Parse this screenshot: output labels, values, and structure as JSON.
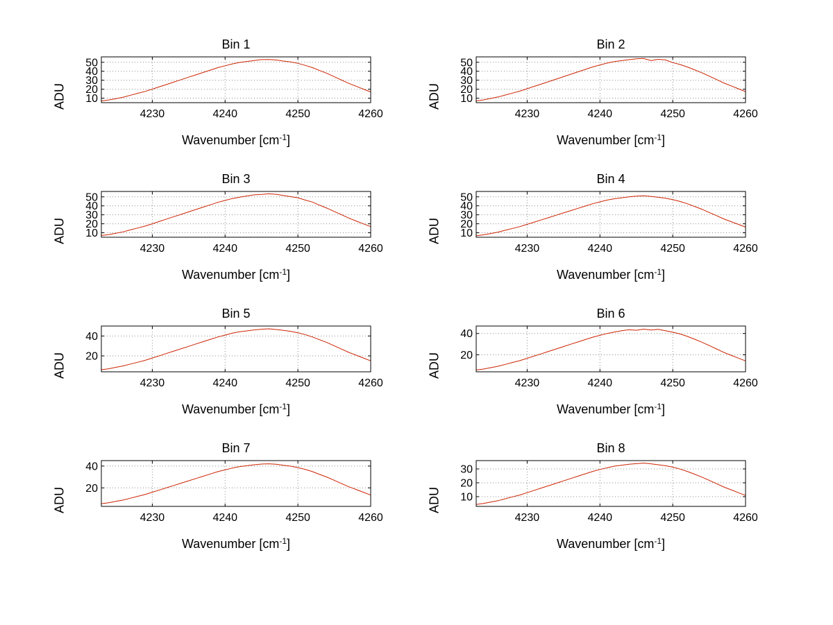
{
  "page": {
    "background": "#ffffff"
  },
  "style": {
    "line_color": "#cc2200",
    "grid_color": "#8a8a8a",
    "axis_color": "#000000",
    "tick_label_size": 16
  },
  "labels": {
    "ylabel": "ADU",
    "xlabel_prefix": "Wavenumber [cm",
    "xlabel_sup": "-1",
    "xlabel_suffix": "]"
  },
  "chart_data": {
    "type": "line",
    "title": "",
    "xlabel": "Wavenumber [cm^-1]",
    "ylabel": "ADU",
    "grid": true,
    "legend": false,
    "xlim": [
      4223,
      4260
    ],
    "xticks": [
      4230,
      4240,
      4250,
      4260
    ],
    "x": [
      4223,
      4224,
      4225,
      4226,
      4227,
      4228,
      4229,
      4230,
      4231,
      4232,
      4233,
      4234,
      4235,
      4236,
      4237,
      4238,
      4239,
      4240,
      4241,
      4242,
      4243,
      4244,
      4245,
      4246,
      4247,
      4248,
      4249,
      4250,
      4251,
      4252,
      4253,
      4254,
      4255,
      4256,
      4257,
      4258,
      4259,
      4260
    ],
    "panels": [
      {
        "title": "Bin 1",
        "yticks": [
          10,
          20,
          30,
          40,
          50
        ],
        "ylim": [
          5,
          56
        ],
        "values": [
          6.9,
          8.0,
          9.5,
          11.1,
          13.3,
          15.4,
          17.5,
          20.1,
          22.8,
          25.4,
          28.1,
          30.7,
          33.4,
          36.0,
          38.7,
          41.3,
          44.0,
          46.1,
          48.2,
          49.8,
          50.9,
          51.9,
          53.0,
          53.1,
          52.5,
          51.4,
          50.4,
          48.8,
          46.6,
          44.0,
          40.8,
          37.6,
          33.9,
          30.2,
          26.5,
          23.3,
          20.1,
          17.0
        ]
      },
      {
        "title": "Bin 2",
        "yticks": [
          10,
          20,
          30,
          40,
          50
        ],
        "ylim": [
          5,
          56
        ],
        "values": [
          7.0,
          8.1,
          9.7,
          11.3,
          13.5,
          15.7,
          17.8,
          20.5,
          23.2,
          25.9,
          28.6,
          31.3,
          34.0,
          36.7,
          39.4,
          42.1,
          44.8,
          47.0,
          49.1,
          50.8,
          51.8,
          52.9,
          53.8,
          54.2,
          51.8,
          53.3,
          52.6,
          49.7,
          47.5,
          44.8,
          41.6,
          38.3,
          34.6,
          30.8,
          27.0,
          23.8,
          20.5,
          17.3
        ]
      },
      {
        "title": "Bin 3",
        "yticks": [
          10,
          20,
          30,
          40,
          50
        ],
        "ylim": [
          5,
          56
        ],
        "values": [
          6.9,
          7.9,
          9.4,
          11.0,
          13.2,
          15.3,
          17.4,
          20.0,
          22.7,
          25.3,
          28.0,
          30.6,
          33.3,
          35.9,
          38.6,
          41.2,
          43.9,
          46.0,
          48.1,
          49.7,
          51.0,
          52.2,
          52.7,
          53.4,
          52.8,
          51.6,
          50.2,
          49.0,
          46.4,
          44.2,
          40.6,
          37.4,
          33.7,
          30.0,
          26.3,
          23.1,
          19.9,
          16.8
        ]
      },
      {
        "title": "Bin 4",
        "yticks": [
          10,
          20,
          30,
          40,
          50
        ],
        "ylim": [
          5,
          56
        ],
        "values": [
          6.6,
          7.7,
          9.2,
          10.7,
          12.8,
          14.8,
          16.8,
          19.4,
          21.9,
          24.5,
          27.0,
          29.6,
          32.1,
          34.7,
          37.2,
          39.8,
          42.3,
          44.4,
          46.4,
          47.9,
          49.0,
          50.0,
          50.8,
          51.2,
          50.5,
          49.5,
          48.5,
          46.9,
          44.9,
          42.3,
          39.3,
          36.2,
          32.6,
          29.1,
          25.5,
          22.4,
          19.4,
          16.3
        ]
      },
      {
        "title": "Bin 5",
        "yticks": [
          20,
          40
        ],
        "ylim": [
          4,
          50
        ],
        "values": [
          6.1,
          7.1,
          8.5,
          9.9,
          11.8,
          13.6,
          15.5,
          17.9,
          20.2,
          22.6,
          24.9,
          27.3,
          29.6,
          32.0,
          34.3,
          36.7,
          39.0,
          40.9,
          42.8,
          44.2,
          45.1,
          46.1,
          46.8,
          47.2,
          46.5,
          45.6,
          44.7,
          43.2,
          41.4,
          39.0,
          36.2,
          33.4,
          30.1,
          26.8,
          23.5,
          20.7,
          17.9,
          15.0
        ]
      },
      {
        "title": "Bin 6",
        "yticks": [
          20,
          40
        ],
        "ylim": [
          4,
          47
        ],
        "values": [
          5.7,
          6.6,
          7.9,
          9.2,
          11.0,
          12.8,
          14.5,
          16.7,
          18.9,
          21.1,
          23.3,
          25.5,
          27.7,
          29.9,
          32.1,
          34.3,
          36.5,
          38.3,
          40.0,
          41.4,
          42.6,
          43.5,
          43.0,
          44.1,
          43.3,
          43.9,
          42.6,
          41.2,
          39.6,
          37.3,
          34.6,
          31.8,
          28.7,
          25.5,
          22.3,
          19.6,
          16.9,
          14.2
        ]
      },
      {
        "title": "Bin 7",
        "yticks": [
          20,
          40
        ],
        "ylim": [
          3,
          45
        ],
        "values": [
          5.5,
          6.3,
          7.6,
          8.8,
          10.5,
          12.2,
          13.9,
          16.0,
          18.1,
          20.2,
          22.3,
          24.4,
          26.5,
          28.6,
          30.7,
          32.8,
          34.9,
          36.5,
          38.2,
          39.5,
          40.3,
          41.2,
          41.8,
          42.1,
          41.6,
          40.7,
          39.9,
          38.6,
          37.0,
          34.9,
          32.3,
          29.8,
          26.9,
          23.9,
          21.0,
          18.5,
          16.0,
          13.4
        ]
      },
      {
        "title": "Bin 8",
        "yticks": [
          10,
          20,
          30
        ],
        "ylim": [
          3,
          36
        ],
        "values": [
          4.4,
          5.1,
          6.1,
          7.1,
          8.5,
          9.9,
          11.2,
          12.9,
          14.6,
          16.3,
          18.0,
          19.7,
          21.4,
          23.1,
          24.8,
          26.5,
          28.2,
          29.6,
          30.9,
          32.0,
          32.7,
          33.4,
          33.8,
          34.2,
          33.7,
          33.0,
          32.3,
          31.3,
          29.9,
          28.2,
          26.2,
          24.1,
          21.8,
          19.4,
          17.0,
          15.0,
          12.9,
          10.9
        ]
      }
    ]
  }
}
